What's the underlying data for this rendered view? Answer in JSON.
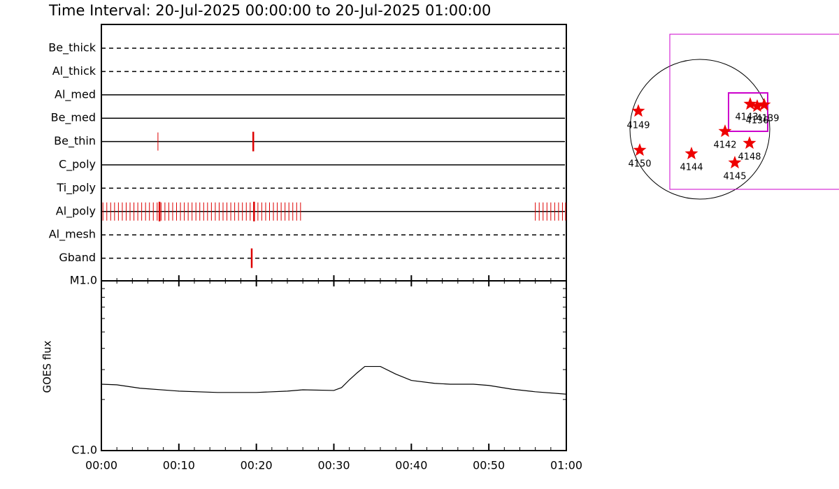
{
  "chart_data": [
    {
      "type": "timeline",
      "title": "Time Interval: 20-Jul-2025 00:00:00 to 20-Jul-2025 01:00:00",
      "color": "#dd0000",
      "xlim": [
        0,
        60
      ],
      "rows": [
        {
          "name": "Be_thick",
          "style": "dashed"
        },
        {
          "name": "Al_thick",
          "style": "dashed"
        },
        {
          "name": "Al_med",
          "style": "solid"
        },
        {
          "name": "Be_med",
          "style": "solid"
        },
        {
          "name": "Be_thin",
          "style": "solid",
          "events": [
            7.3
          ],
          "emphasis": [
            19.6
          ]
        },
        {
          "name": "C_poly",
          "style": "solid"
        },
        {
          "name": "Ti_poly",
          "style": "dashed"
        },
        {
          "name": "Al_poly",
          "style": "solid",
          "events": [
            0.2,
            0.7,
            1.2,
            1.7,
            2.2,
            2.7,
            3.2,
            3.7,
            4.2,
            4.7,
            5.2,
            5.7,
            6.2,
            6.7,
            7.2,
            7.7,
            8.2,
            8.7,
            9.2,
            9.7,
            10.2,
            10.7,
            11.2,
            11.7,
            12.2,
            12.7,
            13.2,
            13.7,
            14.2,
            14.7,
            15.2,
            15.7,
            16.2,
            16.7,
            17.2,
            17.7,
            18.2,
            18.7,
            19.2,
            20.2,
            20.7,
            21.2,
            21.7,
            22.2,
            22.7,
            23.2,
            23.7,
            24.2,
            24.7,
            25.2,
            25.7,
            56.0,
            56.5,
            57.0,
            57.5,
            58.0,
            58.5,
            59.0,
            59.5,
            59.9
          ],
          "emphasis": [
            7.5,
            19.7
          ]
        },
        {
          "name": "Al_mesh",
          "style": "dashed"
        },
        {
          "name": "Gband",
          "style": "dashed",
          "emphasis": [
            19.4
          ]
        }
      ]
    },
    {
      "type": "line",
      "ylabel": "GOES flux",
      "color": "#000000",
      "log_scale": true,
      "x": [
        0,
        2,
        5,
        10,
        15,
        20,
        24,
        26,
        30,
        31,
        32,
        33,
        34,
        36,
        38,
        40,
        43,
        45,
        48,
        50,
        53,
        56,
        60
      ],
      "values": [
        2.46e-06,
        2.44e-06,
        2.33e-06,
        2.24e-06,
        2.2e-06,
        2.2e-06,
        2.24e-06,
        2.28e-06,
        2.26e-06,
        2.35e-06,
        2.61e-06,
        2.87e-06,
        3.13e-06,
        3.13e-06,
        2.82e-06,
        2.59e-06,
        2.49e-06,
        2.46e-06,
        2.46e-06,
        2.42e-06,
        2.3e-06,
        2.22e-06,
        2.15e-06
      ],
      "xlim": [
        0,
        60
      ],
      "xticks": [
        {
          "value": 0,
          "label": "00:00"
        },
        {
          "value": 10,
          "label": "00:10"
        },
        {
          "value": 20,
          "label": "00:20"
        },
        {
          "value": 30,
          "label": "00:30"
        },
        {
          "value": 40,
          "label": "00:40"
        },
        {
          "value": 50,
          "label": "00:50"
        },
        {
          "value": 60,
          "label": "01:00"
        }
      ],
      "ylim": [
        1e-06,
        1e-05
      ],
      "yticks": [
        {
          "value": 1e-06,
          "label": "C1.0"
        },
        {
          "value": 1e-05,
          "label": "M1.0"
        }
      ],
      "minor_yticks": [
        2e-06,
        3e-06,
        4e-06,
        5e-06,
        6e-06,
        7e-06,
        8e-06,
        9e-06
      ]
    }
  ],
  "map": {
    "active_regions": [
      "4149",
      "4150",
      "4144",
      "4142",
      "4148",
      "4145",
      "4143",
      "4136",
      "4139"
    ]
  }
}
